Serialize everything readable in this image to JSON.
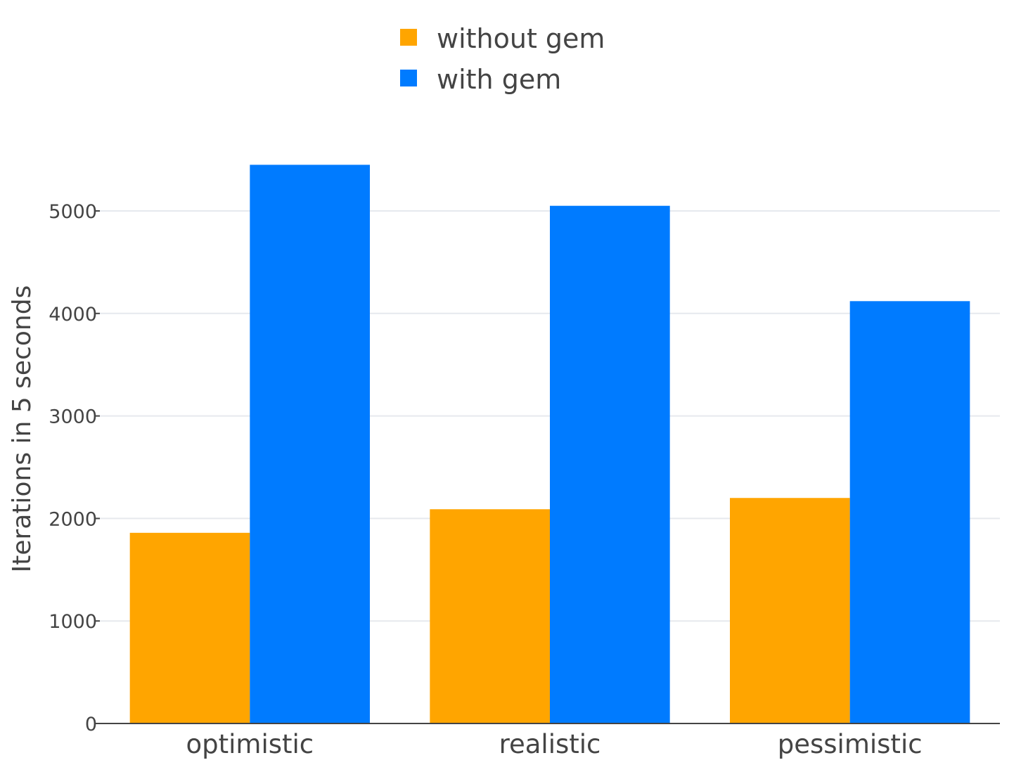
{
  "chart_data": {
    "type": "bar",
    "title": "",
    "xlabel": "",
    "ylabel": "Iterations in 5 seconds",
    "categories": [
      "optimistic",
      "realistic",
      "pessimistic"
    ],
    "series": [
      {
        "name": "without gem",
        "color": "#FFA500",
        "values": [
          1860,
          2090,
          2200
        ]
      },
      {
        "name": "with gem",
        "color": "#007BFF",
        "values": [
          5450,
          5050,
          4120
        ]
      }
    ],
    "ylim": [
      0,
      5800
    ],
    "yticks": [
      0,
      1000,
      2000,
      3000,
      4000,
      5000
    ],
    "grid": true,
    "legend_position": "top-center",
    "colors": {
      "gridline": "#E6E9EE",
      "axis": "#444444",
      "text": "#444444"
    }
  }
}
